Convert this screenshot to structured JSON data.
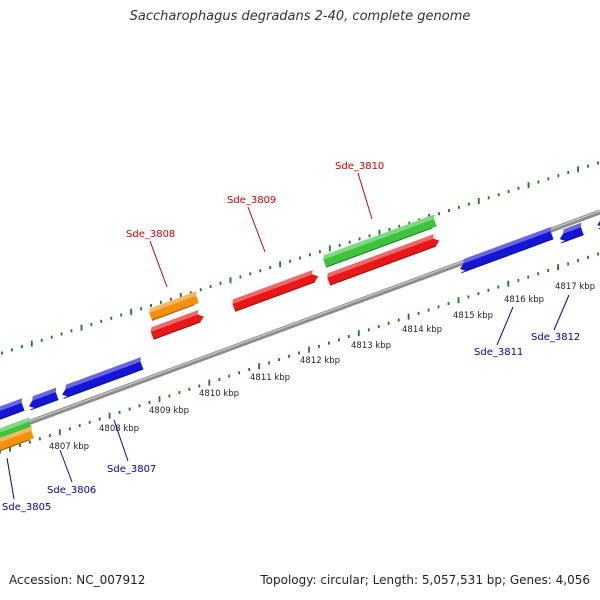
{
  "title": "Saccharophagus degradans 2-40, complete genome",
  "footer": {
    "accession": "Accession: NC_007912",
    "summary": "Topology: circular; Length: 5,057,531 bp; Genes: 4,056"
  },
  "colors": {
    "backbone": "#8c8c8c",
    "ticks": "#1c7a1c",
    "cds_forward_red": "#e81818",
    "cds_reverse_blue": "#1515d6",
    "rna_green": "#3cc43c",
    "orange": "#f5900c",
    "label_forward": "#cc0000",
    "label_reverse": "#0000aa"
  },
  "scale_labels": [
    "4807 kbp",
    "4808 kbp",
    "4809 kbp",
    "4810 kbp",
    "4811 kbp",
    "4812 kbp",
    "4813 kbp",
    "4814 kbp",
    "4815 kbp",
    "4816 kbp",
    "4817 kbp"
  ],
  "labels": {
    "forward": [
      "Sde_3808",
      "Sde_3809",
      "Sde_3810"
    ],
    "reverse": [
      "Sde_3805",
      "Sde_3806",
      "Sde_3807",
      "Sde_3811",
      "Sde_3812"
    ]
  }
}
